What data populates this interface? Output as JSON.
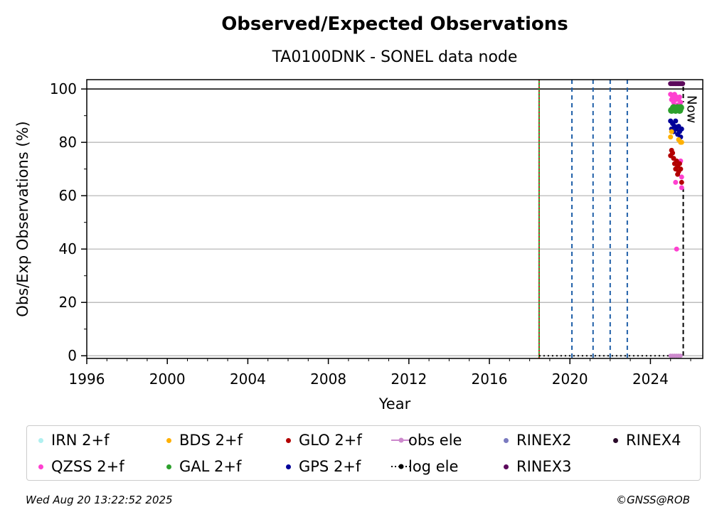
{
  "chart_data": {
    "type": "scatter",
    "title": "Observed/Expected Observations",
    "subtitle": "TA0100DNK - SONEL data node",
    "xlabel": "Year",
    "ylabel": "Obs/Exp Observations (%)",
    "xlim": [
      1996,
      2026.6
    ],
    "ylim": [
      -1,
      103.5
    ],
    "x_ticks": [
      1996,
      2000,
      2004,
      2008,
      2012,
      2016,
      2020,
      2024
    ],
    "y_ticks": [
      0,
      20,
      40,
      60,
      80,
      100
    ],
    "grid": "horizontal",
    "reference_line": 100,
    "now_label": "Now",
    "now_x": 2025.63,
    "vertical_lines": [
      {
        "x": 2018.47,
        "color": "#2ca02c",
        "style": "solid"
      },
      {
        "x": 2018.47,
        "color": "#d62728",
        "style": "dotted"
      },
      {
        "x": 2020.1,
        "color": "#1f5fa8",
        "style": "dashed"
      },
      {
        "x": 2021.15,
        "color": "#1f5fa8",
        "style": "dashed"
      },
      {
        "x": 2022.0,
        "color": "#1f5fa8",
        "style": "dashed"
      },
      {
        "x": 2022.85,
        "color": "#1f5fa8",
        "style": "dashed"
      }
    ],
    "series": [
      {
        "name": "RINEX3",
        "color": "#5c0a5c",
        "size": 4,
        "points": [
          [
            2025.0,
            102
          ],
          [
            2025.08,
            102
          ],
          [
            2025.16,
            102
          ],
          [
            2025.24,
            102
          ],
          [
            2025.32,
            102
          ],
          [
            2025.4,
            102
          ],
          [
            2025.48,
            102
          ],
          [
            2025.56,
            102
          ],
          [
            2025.6,
            102
          ]
        ]
      },
      {
        "name": "QZSS 2+f",
        "color": "#ff40d0",
        "size": 4,
        "points": [
          [
            2025.0,
            98
          ],
          [
            2025.05,
            96
          ],
          [
            2025.1,
            97
          ],
          [
            2025.15,
            95
          ],
          [
            2025.2,
            98
          ],
          [
            2025.25,
            96
          ],
          [
            2025.3,
            97
          ],
          [
            2025.35,
            94
          ],
          [
            2025.4,
            96
          ],
          [
            2025.45,
            97
          ],
          [
            2025.5,
            95
          ],
          [
            2025.55,
            63
          ],
          [
            2025.25,
            65
          ],
          [
            2025.3,
            40
          ],
          [
            2025.5,
            73
          ],
          [
            2025.55,
            67
          ]
        ]
      },
      {
        "name": "GAL 2+f",
        "color": "#2ca02c",
        "size": 7,
        "points": [
          [
            2025.05,
            92
          ],
          [
            2025.15,
            93
          ],
          [
            2025.25,
            92
          ],
          [
            2025.35,
            93
          ],
          [
            2025.45,
            92
          ],
          [
            2025.5,
            93
          ]
        ]
      },
      {
        "name": "GPS 2+f",
        "color": "#000099",
        "size": 4,
        "points": [
          [
            2025.0,
            88
          ],
          [
            2025.05,
            85
          ],
          [
            2025.1,
            87
          ],
          [
            2025.15,
            84
          ],
          [
            2025.2,
            86
          ],
          [
            2025.25,
            88
          ],
          [
            2025.3,
            85
          ],
          [
            2025.35,
            83
          ],
          [
            2025.4,
            86
          ],
          [
            2025.45,
            84
          ],
          [
            2025.5,
            82
          ],
          [
            2025.55,
            85
          ]
        ]
      },
      {
        "name": "BDS 2+f",
        "color": "#ffb000",
        "size": 4,
        "points": [
          [
            2025.0,
            82
          ],
          [
            2025.05,
            84
          ],
          [
            2025.4,
            81
          ],
          [
            2025.5,
            80
          ],
          [
            2025.55,
            80
          ]
        ]
      },
      {
        "name": "GLO 2+f",
        "color": "#b30000",
        "size": 4,
        "points": [
          [
            2025.0,
            75
          ],
          [
            2025.05,
            77
          ],
          [
            2025.1,
            76
          ],
          [
            2025.15,
            74
          ],
          [
            2025.2,
            72
          ],
          [
            2025.25,
            70
          ],
          [
            2025.3,
            73
          ],
          [
            2025.35,
            71
          ],
          [
            2025.4,
            69
          ],
          [
            2025.45,
            72
          ],
          [
            2025.5,
            70
          ],
          [
            2025.55,
            65
          ],
          [
            2025.35,
            68
          ]
        ]
      },
      {
        "name": "obs ele",
        "color": "#cc88cc",
        "size": 3,
        "points": [
          [
            2025.0,
            0
          ],
          [
            2025.1,
            0
          ],
          [
            2025.2,
            0
          ],
          [
            2025.3,
            0
          ],
          [
            2025.4,
            0
          ],
          [
            2025.5,
            0
          ]
        ]
      }
    ],
    "log_ele": [
      [
        2018.47,
        0
      ],
      [
        2025.63,
        0
      ]
    ],
    "legend": [
      {
        "label": "IRN 2+f",
        "color": "#b0f0f0",
        "type": "dot"
      },
      {
        "label": "QZSS 2+f",
        "color": "#ff40d0",
        "type": "dot"
      },
      {
        "label": "BDS 2+f",
        "color": "#ffb000",
        "type": "dot"
      },
      {
        "label": "GAL 2+f",
        "color": "#2ca02c",
        "type": "dot"
      },
      {
        "label": "GLO 2+f",
        "color": "#b30000",
        "type": "dot"
      },
      {
        "label": "GPS 2+f",
        "color": "#000099",
        "type": "dot"
      },
      {
        "label": "obs ele",
        "color": "#cc88cc",
        "type": "line-dot"
      },
      {
        "label": "log ele",
        "color": "#000000",
        "type": "dotted-line"
      },
      {
        "label": "RINEX2",
        "color": "#7a7ac0",
        "type": "dot"
      },
      {
        "label": "RINEX3",
        "color": "#5c0a5c",
        "type": "dot"
      },
      {
        "label": "RINEX4",
        "color": "#2a0a2a",
        "type": "dot"
      }
    ]
  },
  "footer": {
    "timestamp": "Wed Aug 20 13:22:52 2025",
    "credit": "©GNSS@ROB"
  }
}
